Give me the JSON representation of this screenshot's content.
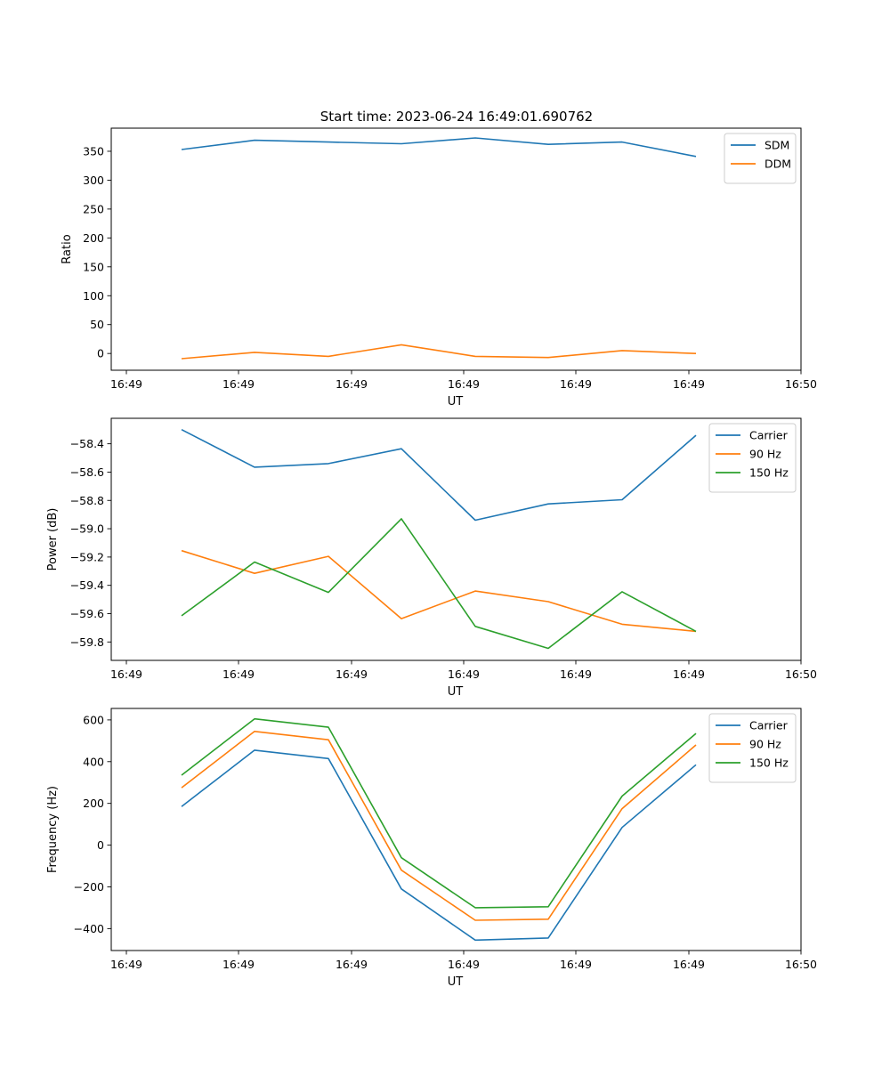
{
  "figure": {
    "title": "Start time: 2023-06-24 16:49:01.690762"
  },
  "chart_data": [
    {
      "type": "line",
      "xlabel": "UT",
      "ylabel": "Ratio",
      "x_tick_labels": [
        "16:49",
        "16:49",
        "16:49",
        "16:49",
        "16:49",
        "16:49",
        "16:50"
      ],
      "ylim": [
        -29,
        390
      ],
      "yticks": [
        0,
        50,
        100,
        150,
        200,
        250,
        300,
        350
      ],
      "ytick_labels": [
        "0",
        "50",
        "100",
        "150",
        "200",
        "250",
        "300",
        "350"
      ],
      "legend_position": "top-right",
      "grid": false,
      "series": [
        {
          "name": "SDM",
          "color": "#1f77b4",
          "values": [
            353,
            369,
            366,
            363,
            373,
            362,
            366,
            341
          ]
        },
        {
          "name": "DDM",
          "color": "#ff7f0e",
          "values": [
            -9,
            2,
            -5,
            15,
            -5,
            -7,
            5,
            0
          ]
        }
      ]
    },
    {
      "type": "line",
      "xlabel": "UT",
      "ylabel": "Power (dB)",
      "x_tick_labels": [
        "16:49",
        "16:49",
        "16:49",
        "16:49",
        "16:49",
        "16:49",
        "16:50"
      ],
      "ylim": [
        -59.93,
        -58.22
      ],
      "yticks": [
        -59.8,
        -59.6,
        -59.4,
        -59.2,
        -59.0,
        -58.8,
        -58.6,
        -58.4
      ],
      "ytick_labels": [
        "−59.8",
        "−59.6",
        "−59.4",
        "−59.2",
        "−59.0",
        "−58.8",
        "−58.6",
        "−58.4"
      ],
      "legend_position": "top-right",
      "grid": false,
      "series": [
        {
          "name": "Carrier",
          "color": "#1f77b4",
          "values": [
            -58.3,
            -58.565,
            -58.54,
            -58.435,
            -58.94,
            -58.825,
            -58.795,
            -58.34
          ]
        },
        {
          "name": "90 Hz",
          "color": "#ff7f0e",
          "values": [
            -59.155,
            -59.315,
            -59.195,
            -59.635,
            -59.44,
            -59.515,
            -59.675,
            -59.725
          ]
        },
        {
          "name": "150 Hz",
          "color": "#2ca02c",
          "values": [
            -59.615,
            -59.235,
            -59.45,
            -58.93,
            -59.69,
            -59.845,
            -59.445,
            -59.725
          ]
        }
      ]
    },
    {
      "type": "line",
      "xlabel": "UT",
      "ylabel": "Frequency (Hz)",
      "x_tick_labels": [
        "16:49",
        "16:49",
        "16:49",
        "16:49",
        "16:49",
        "16:49",
        "16:50"
      ],
      "ylim": [
        -505,
        655
      ],
      "yticks": [
        -400,
        -200,
        0,
        200,
        400,
        600
      ],
      "ytick_labels": [
        "−400",
        "−200",
        "0",
        "200",
        "400",
        "600"
      ],
      "legend_position": "top-right",
      "grid": false,
      "series": [
        {
          "name": "Carrier",
          "color": "#1f77b4",
          "values": [
            185,
            455,
            415,
            -210,
            -455,
            -445,
            85,
            385
          ]
        },
        {
          "name": "90 Hz",
          "color": "#ff7f0e",
          "values": [
            275,
            545,
            505,
            -120,
            -360,
            -355,
            175,
            480
          ]
        },
        {
          "name": "150 Hz",
          "color": "#2ca02c",
          "values": [
            335,
            605,
            565,
            -60,
            -300,
            -295,
            235,
            535
          ]
        }
      ]
    }
  ]
}
